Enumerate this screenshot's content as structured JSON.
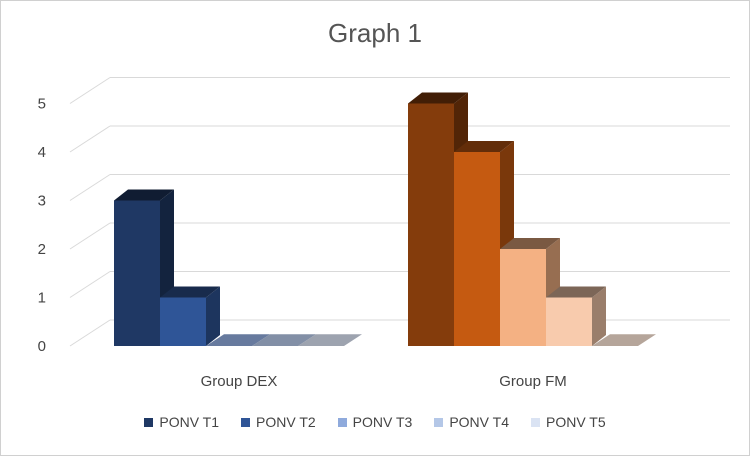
{
  "chart_data": {
    "type": "bar",
    "title": "Graph 1",
    "xlabel": "",
    "ylabel": "",
    "ylim": [
      0,
      5
    ],
    "yticks": [
      "0",
      "1",
      "2",
      "3",
      "4",
      "5"
    ],
    "grid": true,
    "legend_position": "bottom",
    "categories": [
      "Group DEX",
      "Group FM"
    ],
    "series": [
      {
        "name": "PONV T1",
        "values": [
          3,
          5
        ]
      },
      {
        "name": "PONV T2",
        "values": [
          1,
          4
        ]
      },
      {
        "name": "PONV T3",
        "values": [
          0,
          2
        ]
      },
      {
        "name": "PONV T4",
        "values": [
          0,
          1
        ]
      },
      {
        "name": "PONV T5",
        "values": [
          0,
          0
        ]
      }
    ],
    "colors": {
      "Group DEX": [
        "#1f3864",
        "#2f5597",
        "#8faadc",
        "#b4c7e7",
        "#dae3f3"
      ],
      "Group FM": [
        "#843c0c",
        "#c55a11",
        "#f4b183",
        "#f8cbad",
        "#fbe5d6"
      ],
      "legend": [
        "#1f3864",
        "#2f5597",
        "#8faadc",
        "#b4c7e7",
        "#dae3f3"
      ]
    }
  }
}
